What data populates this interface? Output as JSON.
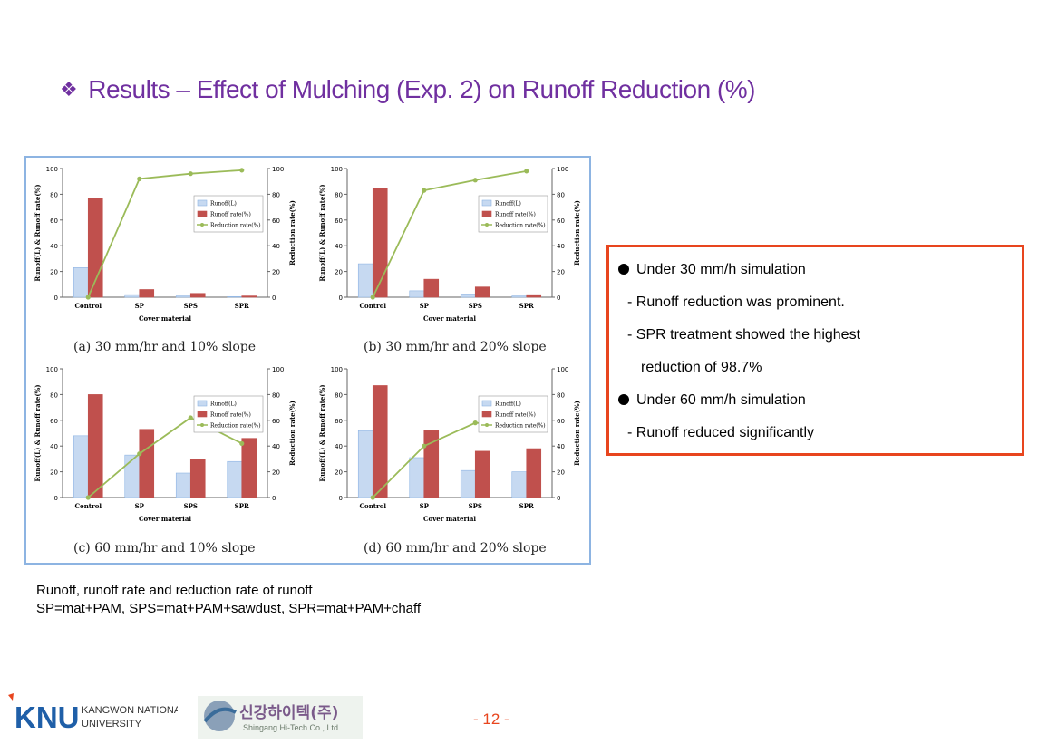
{
  "slide": {
    "title": "Results – Effect of Mulching (Exp. 2) on Runoff Reduction (%)",
    "bullet_glyph": "❖",
    "note_line1": "Runoff, runoff rate and reduction rate of runoff",
    "note_line2": "SP=mat+PAM, SPS=mat+PAM+sawdust, SPR=mat+PAM+chaff",
    "page_number": "- 12 -"
  },
  "box": {
    "lines": [
      {
        "bullet": true,
        "text": "Under 30 mm/h simulation"
      },
      {
        "bullet": false,
        "text": "- Runoff reduction was prominent."
      },
      {
        "bullet": false,
        "text": "- SPR treatment showed the highest"
      },
      {
        "bullet": false,
        "text": "reduction of 98.7%"
      },
      {
        "bullet": true,
        "text": "Under 60 mm/h simulation"
      },
      {
        "bullet": false,
        "text": "- Runoff reduced significantly"
      }
    ],
    "border_color": "#e8451e"
  },
  "footer": {
    "knu_letters": "KNU",
    "knu_name_line1": "KANGWON NATIONAL",
    "knu_name_line2": "UNIVERSITY",
    "sg_korean": "신강하이텍(주)",
    "sg_english": "Shingang Hi-Tech Co., Ltd"
  },
  "colors": {
    "runoff": "#c6d9f1",
    "runoff_stroke": "#8eb4e3",
    "runoff_rate": "#c0504d",
    "reduction": "#9bbb59",
    "title": "#7030a0"
  },
  "chart_data": [
    {
      "type": "bar",
      "caption": "(a) 30 mm/hr and 10% slope",
      "categories": [
        "Control",
        "SP",
        "SPS",
        "SPR"
      ],
      "xlabel": "Cover material",
      "ylabel": "Runoff(L) & Runoff rate(%)",
      "y2label": "Reduction rate(%)",
      "ylim": [
        0,
        100
      ],
      "y2lim": [
        0,
        100
      ],
      "yticks": [
        "0",
        "20",
        "40",
        "60",
        "80",
        "100"
      ],
      "legend_position": "right",
      "series": [
        {
          "name": "Runoff(L)",
          "kind": "bar",
          "values": [
            23,
            2,
            1,
            0.5
          ]
        },
        {
          "name": "Runoff rate(%)",
          "kind": "bar",
          "values": [
            77,
            6,
            3,
            1
          ]
        },
        {
          "name": "Reduction rate(%)",
          "kind": "line",
          "axis": "right",
          "values": [
            0,
            92,
            96,
            98.7
          ]
        }
      ]
    },
    {
      "type": "bar",
      "caption": "(b) 30 mm/hr and 20% slope",
      "categories": [
        "Control",
        "SP",
        "SPS",
        "SPR"
      ],
      "xlabel": "Cover material",
      "ylabel": "Runoff(L) & Runoff rate(%)",
      "y2label": "Reduction rate(%)",
      "ylim": [
        0,
        100
      ],
      "y2lim": [
        0,
        100
      ],
      "yticks": [
        "0",
        "20",
        "40",
        "60",
        "80",
        "100"
      ],
      "legend_position": "right",
      "series": [
        {
          "name": "Runoff(L)",
          "kind": "bar",
          "values": [
            26,
            5,
            2.5,
            1
          ]
        },
        {
          "name": "Runoff rate(%)",
          "kind": "bar",
          "values": [
            85,
            14,
            8,
            2
          ]
        },
        {
          "name": "Reduction rate(%)",
          "kind": "line",
          "axis": "right",
          "values": [
            0,
            83,
            91,
            98
          ]
        }
      ]
    },
    {
      "type": "bar",
      "caption": "(c) 60 mm/hr and 10% slope",
      "categories": [
        "Control",
        "SP",
        "SPS",
        "SPR"
      ],
      "xlabel": "Cover material",
      "ylabel": "Runoff(L) & Runoff rate(%)",
      "y2label": "Reduction rate(%)",
      "ylim": [
        0,
        100
      ],
      "y2lim": [
        0,
        100
      ],
      "yticks": [
        "0",
        "20",
        "40",
        "60",
        "80",
        "100"
      ],
      "legend_position": "right",
      "series": [
        {
          "name": "Runoff(L)",
          "kind": "bar",
          "values": [
            48,
            33,
            19,
            28
          ]
        },
        {
          "name": "Runoff rate(%)",
          "kind": "bar",
          "values": [
            80,
            53,
            30,
            46
          ]
        },
        {
          "name": "Reduction rate(%)",
          "kind": "line",
          "axis": "right",
          "values": [
            0,
            34,
            62,
            42
          ]
        }
      ]
    },
    {
      "type": "bar",
      "caption": "(d) 60 mm/hr and 20% slope",
      "categories": [
        "Control",
        "SP",
        "SPS",
        "SPR"
      ],
      "xlabel": "Cover material",
      "ylabel": "Runoff(L) & Runoff rate(%)",
      "y2label": "Reduction rate(%)",
      "ylim": [
        0,
        100
      ],
      "y2lim": [
        0,
        100
      ],
      "yticks": [
        "0",
        "20",
        "40",
        "60",
        "80",
        "100"
      ],
      "legend_position": "right",
      "series": [
        {
          "name": "Runoff(L)",
          "kind": "bar",
          "values": [
            52,
            31,
            21,
            20
          ]
        },
        {
          "name": "Runoff rate(%)",
          "kind": "bar",
          "values": [
            87,
            52,
            36,
            38
          ]
        },
        {
          "name": "Reduction rate(%)",
          "kind": "line",
          "axis": "right",
          "values": [
            0,
            40,
            58,
            56
          ]
        }
      ]
    }
  ]
}
